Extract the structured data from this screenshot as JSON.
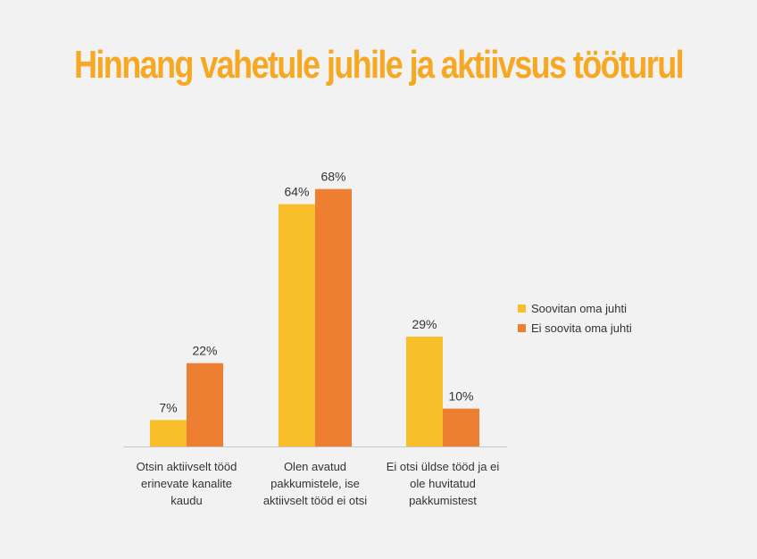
{
  "chart_data": {
    "type": "bar",
    "title": "Hinnang vahetule juhile ja aktiivsus tööturul",
    "categories": [
      [
        "Otsin aktiivselt tööd",
        "erinevate kanalite",
        "kaudu"
      ],
      [
        "Olen avatud",
        "pakkumistele, ise",
        "aktiivselt tööd ei otsi"
      ],
      [
        "Ei otsi üldse tööd ja ei",
        "ole huvitatud",
        "pakkumistest"
      ]
    ],
    "series": [
      {
        "name": "Soovitan oma juhti",
        "color": "#f9bf2b",
        "values": [
          7,
          64,
          29
        ],
        "labels": [
          "7%",
          "64%",
          "29%"
        ]
      },
      {
        "name": "Ei soovita oma juhti",
        "color": "#ee7e32",
        "values": [
          22,
          68,
          10
        ],
        "labels": [
          "22%",
          "68%",
          "10%"
        ]
      }
    ],
    "ylim": [
      0,
      100
    ],
    "legend": "right"
  }
}
